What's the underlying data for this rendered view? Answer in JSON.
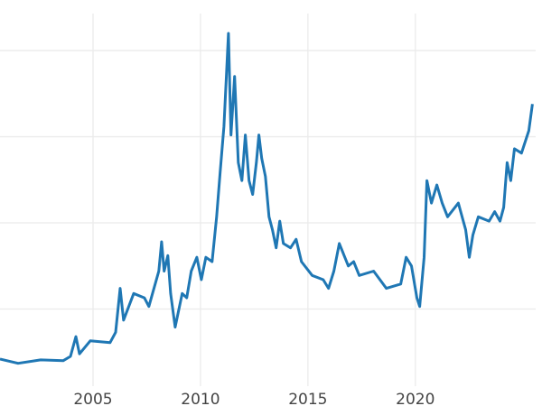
{
  "chart_data": {
    "type": "line",
    "title": "",
    "xlabel": "",
    "ylabel": "",
    "xlim": [
      2000.67,
      2025.6
    ],
    "ylim": [
      0,
      44.3
    ],
    "x_ticks": [
      2005,
      2010,
      2015,
      2020
    ],
    "x_tick_labels": [
      "2005",
      "2010",
      "2015",
      "2020"
    ],
    "y_gridlines": [
      10,
      20,
      30,
      40
    ],
    "y_tick_labels_visible": false,
    "grid": true,
    "legend": "none",
    "color": "#1f77b4",
    "series": [
      {
        "points": [
          [
            2000.67,
            4.2
          ],
          [
            2001.51,
            3.7
          ],
          [
            2002.56,
            4.1
          ],
          [
            2003.61,
            4.0
          ],
          [
            2003.95,
            4.5
          ],
          [
            2004.2,
            6.8
          ],
          [
            2004.37,
            4.8
          ],
          [
            2004.87,
            6.3
          ],
          [
            2005.79,
            6.1
          ],
          [
            2006.05,
            7.3
          ],
          [
            2006.26,
            12.4
          ],
          [
            2006.42,
            8.7
          ],
          [
            2006.89,
            11.8
          ],
          [
            2007.39,
            11.3
          ],
          [
            2007.6,
            10.3
          ],
          [
            2008.06,
            14.4
          ],
          [
            2008.19,
            17.8
          ],
          [
            2008.31,
            14.4
          ],
          [
            2008.48,
            16.2
          ],
          [
            2008.61,
            11.8
          ],
          [
            2008.82,
            7.9
          ],
          [
            2009.15,
            11.8
          ],
          [
            2009.36,
            11.3
          ],
          [
            2009.57,
            14.4
          ],
          [
            2009.83,
            16.0
          ],
          [
            2010.04,
            13.4
          ],
          [
            2010.25,
            16.0
          ],
          [
            2010.54,
            15.5
          ],
          [
            2010.75,
            20.7
          ],
          [
            2010.92,
            26.0
          ],
          [
            2011.09,
            31.2
          ],
          [
            2011.3,
            42.0
          ],
          [
            2011.42,
            30.2
          ],
          [
            2011.59,
            37.0
          ],
          [
            2011.76,
            27.0
          ],
          [
            2011.93,
            24.9
          ],
          [
            2012.09,
            30.2
          ],
          [
            2012.26,
            24.9
          ],
          [
            2012.43,
            23.3
          ],
          [
            2012.6,
            27.0
          ],
          [
            2012.72,
            30.2
          ],
          [
            2012.85,
            27.5
          ],
          [
            2013.02,
            25.4
          ],
          [
            2013.19,
            20.7
          ],
          [
            2013.35,
            19.2
          ],
          [
            2013.52,
            17.1
          ],
          [
            2013.69,
            20.2
          ],
          [
            2013.86,
            17.6
          ],
          [
            2014.19,
            17.1
          ],
          [
            2014.45,
            18.1
          ],
          [
            2014.7,
            15.5
          ],
          [
            2015.2,
            13.9
          ],
          [
            2015.71,
            13.4
          ],
          [
            2015.96,
            12.4
          ],
          [
            2016.21,
            14.4
          ],
          [
            2016.46,
            17.6
          ],
          [
            2016.88,
            15.0
          ],
          [
            2017.13,
            15.5
          ],
          [
            2017.39,
            13.9
          ],
          [
            2018.06,
            14.4
          ],
          [
            2018.65,
            12.4
          ],
          [
            2019.32,
            12.9
          ],
          [
            2019.57,
            16.0
          ],
          [
            2019.82,
            15.0
          ],
          [
            2020.07,
            11.3
          ],
          [
            2020.2,
            10.3
          ],
          [
            2020.41,
            16.0
          ],
          [
            2020.54,
            24.9
          ],
          [
            2020.75,
            22.3
          ],
          [
            2021.0,
            24.4
          ],
          [
            2021.25,
            22.3
          ],
          [
            2021.5,
            20.7
          ],
          [
            2022.0,
            22.3
          ],
          [
            2022.34,
            19.2
          ],
          [
            2022.51,
            16.0
          ],
          [
            2022.68,
            18.6
          ],
          [
            2022.93,
            20.7
          ],
          [
            2023.43,
            20.2
          ],
          [
            2023.69,
            21.3
          ],
          [
            2023.94,
            20.2
          ],
          [
            2024.11,
            21.8
          ],
          [
            2024.27,
            27.0
          ],
          [
            2024.44,
            24.9
          ],
          [
            2024.61,
            28.6
          ],
          [
            2024.94,
            28.1
          ],
          [
            2025.28,
            30.7
          ],
          [
            2025.45,
            33.8
          ]
        ]
      }
    ]
  }
}
